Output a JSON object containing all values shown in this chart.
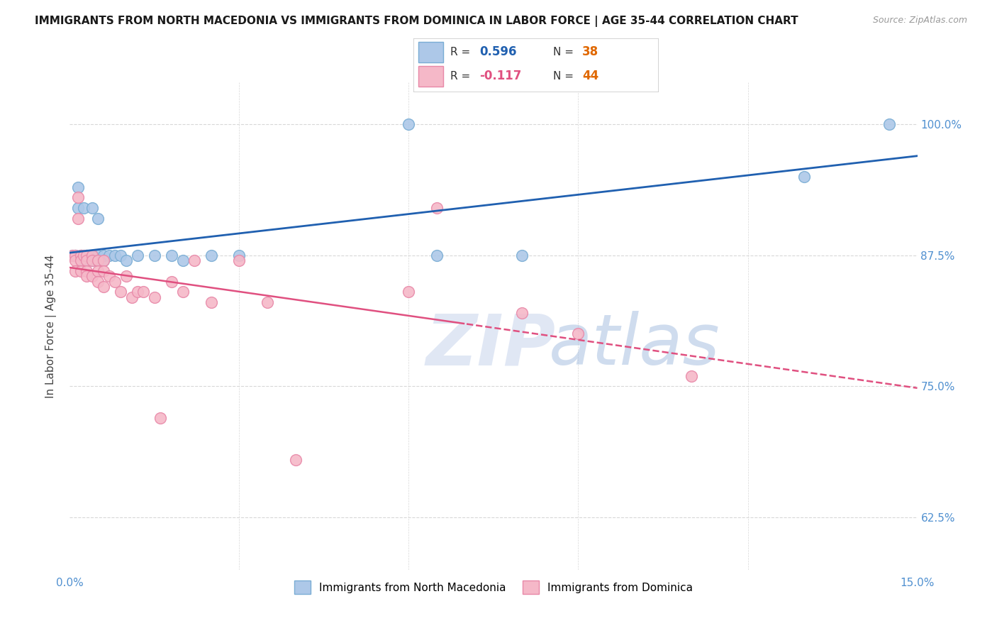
{
  "title": "IMMIGRANTS FROM NORTH MACEDONIA VS IMMIGRANTS FROM DOMINICA IN LABOR FORCE | AGE 35-44 CORRELATION CHART",
  "source": "Source: ZipAtlas.com",
  "ylabel": "In Labor Force | Age 35-44",
  "xlim": [
    0.0,
    0.15
  ],
  "ylim": [
    0.575,
    1.04
  ],
  "ytick_positions": [
    0.625,
    0.75,
    0.875,
    1.0
  ],
  "ytick_labels": [
    "62.5%",
    "75.0%",
    "87.5%",
    "100.0%"
  ],
  "R_blue": 0.596,
  "N_blue": 38,
  "R_pink": -0.117,
  "N_pink": 44,
  "blue_fill": "#adc8e8",
  "blue_edge": "#7aadd4",
  "pink_fill": "#f5b8c8",
  "pink_edge": "#e888a8",
  "blue_line_color": "#2060b0",
  "pink_line_color": "#e05080",
  "grid_color": "#d8d8d8",
  "blue_x": [
    0.0005,
    0.001,
    0.001,
    0.0015,
    0.0015,
    0.002,
    0.002,
    0.002,
    0.002,
    0.0025,
    0.003,
    0.003,
    0.003,
    0.003,
    0.004,
    0.004,
    0.004,
    0.004,
    0.005,
    0.005,
    0.005,
    0.006,
    0.006,
    0.007,
    0.008,
    0.009,
    0.01,
    0.012,
    0.015,
    0.018,
    0.02,
    0.025,
    0.03,
    0.06,
    0.065,
    0.08,
    0.13,
    0.145
  ],
  "blue_y": [
    0.875,
    0.875,
    0.875,
    0.92,
    0.94,
    0.875,
    0.875,
    0.87,
    0.875,
    0.92,
    0.875,
    0.87,
    0.875,
    0.875,
    0.92,
    0.875,
    0.87,
    0.875,
    0.91,
    0.875,
    0.87,
    0.87,
    0.875,
    0.875,
    0.875,
    0.875,
    0.87,
    0.875,
    0.875,
    0.875,
    0.87,
    0.875,
    0.875,
    1.0,
    0.875,
    0.875,
    0.95,
    1.0
  ],
  "pink_x": [
    0.0005,
    0.001,
    0.001,
    0.001,
    0.0015,
    0.0015,
    0.002,
    0.002,
    0.002,
    0.0025,
    0.003,
    0.003,
    0.003,
    0.003,
    0.004,
    0.004,
    0.004,
    0.005,
    0.005,
    0.005,
    0.006,
    0.006,
    0.006,
    0.007,
    0.008,
    0.009,
    0.01,
    0.011,
    0.012,
    0.013,
    0.015,
    0.016,
    0.018,
    0.02,
    0.022,
    0.025,
    0.03,
    0.035,
    0.04,
    0.06,
    0.065,
    0.08,
    0.09,
    0.11
  ],
  "pink_y": [
    0.875,
    0.875,
    0.87,
    0.86,
    0.91,
    0.93,
    0.875,
    0.87,
    0.86,
    0.875,
    0.875,
    0.87,
    0.86,
    0.855,
    0.875,
    0.87,
    0.855,
    0.87,
    0.86,
    0.85,
    0.87,
    0.86,
    0.845,
    0.855,
    0.85,
    0.84,
    0.855,
    0.835,
    0.84,
    0.84,
    0.835,
    0.72,
    0.85,
    0.84,
    0.87,
    0.83,
    0.87,
    0.83,
    0.68,
    0.84,
    0.92,
    0.82,
    0.8,
    0.76
  ]
}
